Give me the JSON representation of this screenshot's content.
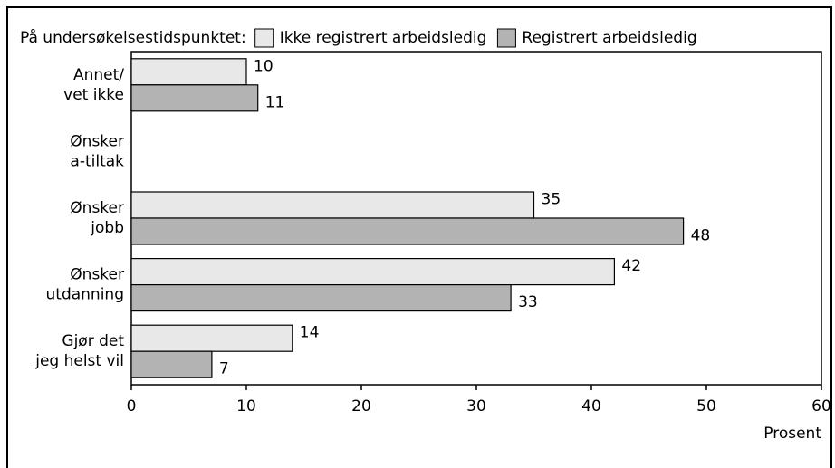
{
  "chart_data": {
    "type": "barh",
    "legend_title": "På undersøkelsestidspunktet:",
    "categories": [
      [
        "Annet/",
        "vet ikke"
      ],
      [
        "Ønsker",
        "a-tiltak"
      ],
      [
        "Ønsker",
        "jobb"
      ],
      [
        "Ønsker",
        "utdanning"
      ],
      [
        "Gjør det",
        "jeg helst vil"
      ]
    ],
    "series": [
      {
        "name": "Ikke registrert arbeidsledig",
        "color": "#e8e8e8",
        "values": [
          10,
          null,
          35,
          42,
          14
        ]
      },
      {
        "name": "Registrert arbeidsledig",
        "color": "#b3b3b3",
        "values": [
          11,
          null,
          48,
          33,
          7
        ]
      }
    ],
    "xlabel": "Prosent",
    "xlim": [
      0,
      60
    ],
    "xticks": [
      0,
      10,
      20,
      30,
      40,
      50,
      60
    ]
  }
}
